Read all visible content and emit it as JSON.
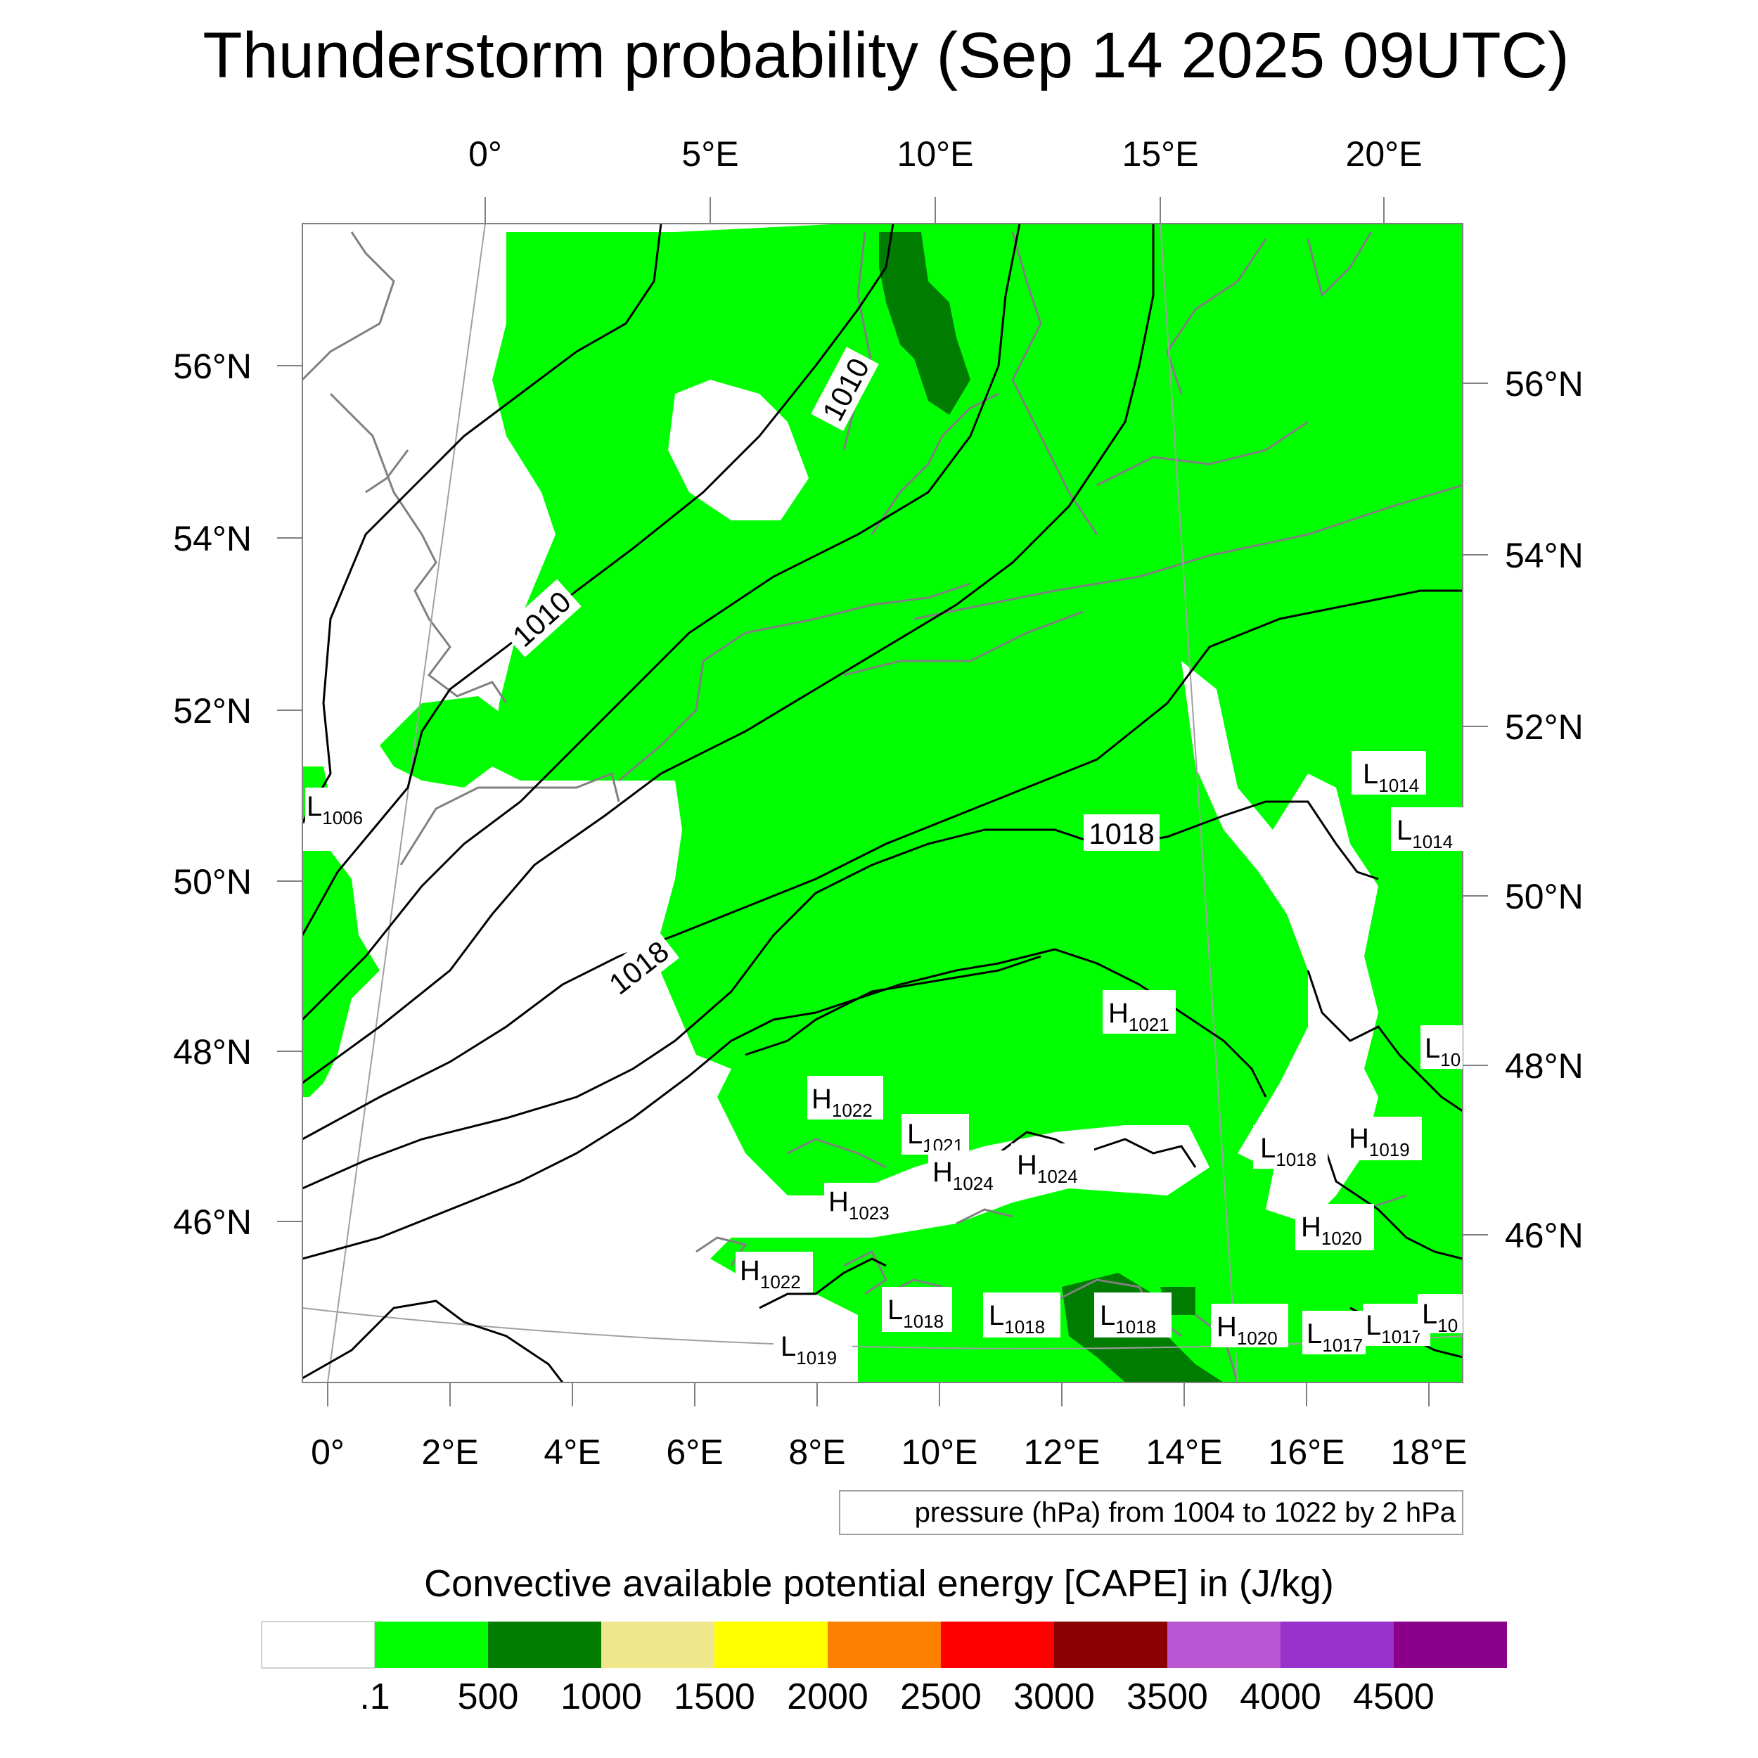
{
  "title": "Thunderstorm probability (Sep 14 2025 09UTC)",
  "top_lon_labels": [
    "0°",
    "5°E",
    "10°E",
    "15°E",
    "20°E"
  ],
  "bottom_lon_labels": [
    "0°",
    "2°E",
    "4°E",
    "6°E",
    "8°E",
    "10°E",
    "12°E",
    "14°E",
    "16°E",
    "18°E"
  ],
  "left_lat_labels": [
    "56°N",
    "54°N",
    "52°N",
    "50°N",
    "48°N",
    "46°N"
  ],
  "right_lat_labels": [
    "56°N",
    "54°N",
    "52°N",
    "50°N",
    "48°N",
    "46°N"
  ],
  "isobar_labels": [
    "1010",
    "1010",
    "1018",
    "1018"
  ],
  "pressure_centers": [
    {
      "type": "L",
      "value": "1006"
    },
    {
      "type": "L",
      "value": "1014"
    },
    {
      "type": "L",
      "value": "1014"
    },
    {
      "type": "H",
      "value": "1021"
    },
    {
      "type": "L",
      "value": "10"
    },
    {
      "type": "H",
      "value": "1022"
    },
    {
      "type": "L",
      "value": "1021"
    },
    {
      "type": "H",
      "value": "1024"
    },
    {
      "type": "H",
      "value": "1024"
    },
    {
      "type": "L",
      "value": "1018"
    },
    {
      "type": "H",
      "value": "1019"
    },
    {
      "type": "H",
      "value": "1023"
    },
    {
      "type": "H",
      "value": "1020"
    },
    {
      "type": "H",
      "value": "1022"
    },
    {
      "type": "L",
      "value": "1018"
    },
    {
      "type": "L",
      "value": "1018"
    },
    {
      "type": "L",
      "value": "1018"
    },
    {
      "type": "H",
      "value": "1020"
    },
    {
      "type": "L",
      "value": "1017"
    },
    {
      "type": "L",
      "value": "1017"
    },
    {
      "type": "L",
      "value": "10"
    },
    {
      "type": "L",
      "value": "1019"
    }
  ],
  "contour_info": "pressure (hPa) from 1004 to 1022 by 2 hPa",
  "colorbar": {
    "title": "Convective available potential energy [CAPE] in (J/kg)",
    "colors": [
      "#ffffff",
      "#00ff00",
      "#007d00",
      "#f0e68c",
      "#ffff00",
      "#ff8000",
      "#ff0000",
      "#8b0000",
      "#ba55d3",
      "#9932cc",
      "#8b008b"
    ],
    "tick_labels": [
      ".1",
      "500",
      "1000",
      "1500",
      "2000",
      "2500",
      "3000",
      "3500",
      "4000",
      "4500"
    ]
  },
  "colors": {
    "cape_low": "#00ff00",
    "cape_mid": "#007d00",
    "coastline": "#808080",
    "isobar": "#000000"
  }
}
